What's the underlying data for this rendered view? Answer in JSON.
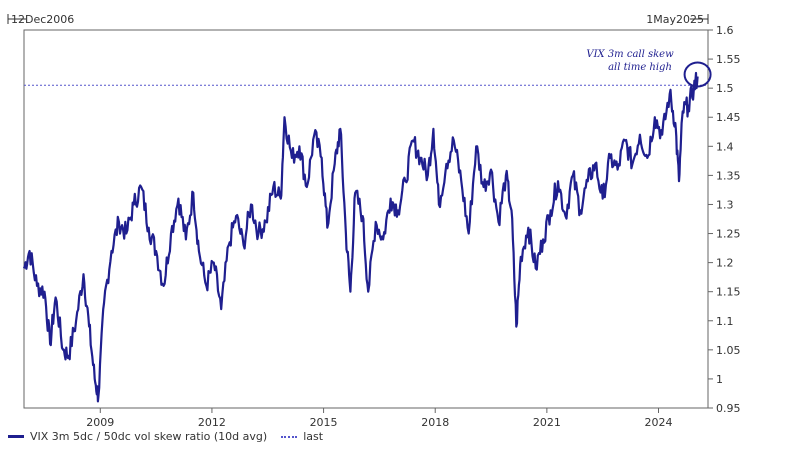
{
  "chart_data": {
    "type": "line",
    "range_start_label": "12Dec2006",
    "range_end_label": "1May2025",
    "x_start": 2006.95,
    "x_end": 2025.33,
    "ylim": [
      0.95,
      1.6
    ],
    "y_ticks": [
      "0.95",
      "1",
      "1.05",
      "1.1",
      "1.15",
      "1.2",
      "1.25",
      "1.3",
      "1.35",
      "1.4",
      "1.45",
      "1.5",
      "1.55",
      "1.6"
    ],
    "x_ticks": [
      {
        "value": 2009,
        "label": "2009"
      },
      {
        "value": 2012,
        "label": "2012"
      },
      {
        "value": 2015,
        "label": "2015"
      },
      {
        "value": 2018,
        "label": "2018"
      },
      {
        "value": 2021,
        "label": "2021"
      },
      {
        "value": 2024,
        "label": "2024"
      }
    ],
    "series": [
      {
        "name": "VIX 3m 5dc / 50dc vol skew ratio (10d avg)",
        "color": "#1f1f8f",
        "points": [
          [
            2006.95,
            1.19
          ],
          [
            2007.1,
            1.22
          ],
          [
            2007.3,
            1.16
          ],
          [
            2007.5,
            1.15
          ],
          [
            2007.65,
            1.06
          ],
          [
            2007.8,
            1.14
          ],
          [
            2008.0,
            1.05
          ],
          [
            2008.15,
            1.04
          ],
          [
            2008.35,
            1.1
          ],
          [
            2008.55,
            1.18
          ],
          [
            2008.7,
            1.09
          ],
          [
            2008.85,
            1.0
          ],
          [
            2008.95,
            0.97
          ],
          [
            2009.1,
            1.13
          ],
          [
            2009.3,
            1.22
          ],
          [
            2009.5,
            1.27
          ],
          [
            2009.7,
            1.25
          ],
          [
            2009.9,
            1.3
          ],
          [
            2010.1,
            1.33
          ],
          [
            2010.3,
            1.26
          ],
          [
            2010.5,
            1.22
          ],
          [
            2010.7,
            1.16
          ],
          [
            2010.9,
            1.25
          ],
          [
            2011.1,
            1.31
          ],
          [
            2011.3,
            1.24
          ],
          [
            2011.5,
            1.32
          ],
          [
            2011.65,
            1.22
          ],
          [
            2011.85,
            1.16
          ],
          [
            2012.05,
            1.2
          ],
          [
            2012.25,
            1.12
          ],
          [
            2012.45,
            1.23
          ],
          [
            2012.65,
            1.28
          ],
          [
            2012.85,
            1.23
          ],
          [
            2013.05,
            1.3
          ],
          [
            2013.25,
            1.25
          ],
          [
            2013.45,
            1.27
          ],
          [
            2013.65,
            1.33
          ],
          [
            2013.85,
            1.31
          ],
          [
            2013.95,
            1.45
          ],
          [
            2014.15,
            1.38
          ],
          [
            2014.35,
            1.4
          ],
          [
            2014.55,
            1.33
          ],
          [
            2014.75,
            1.42
          ],
          [
            2014.95,
            1.38
          ],
          [
            2015.1,
            1.26
          ],
          [
            2015.3,
            1.37
          ],
          [
            2015.45,
            1.43
          ],
          [
            2015.6,
            1.25
          ],
          [
            2015.72,
            1.15
          ],
          [
            2015.85,
            1.32
          ],
          [
            2016.05,
            1.28
          ],
          [
            2016.2,
            1.15
          ],
          [
            2016.4,
            1.27
          ],
          [
            2016.6,
            1.24
          ],
          [
            2016.8,
            1.31
          ],
          [
            2017.0,
            1.29
          ],
          [
            2017.2,
            1.34
          ],
          [
            2017.4,
            1.41
          ],
          [
            2017.6,
            1.38
          ],
          [
            2017.8,
            1.35
          ],
          [
            2017.95,
            1.43
          ],
          [
            2018.1,
            1.3
          ],
          [
            2018.3,
            1.37
          ],
          [
            2018.5,
            1.41
          ],
          [
            2018.7,
            1.34
          ],
          [
            2018.9,
            1.25
          ],
          [
            2019.1,
            1.4
          ],
          [
            2019.3,
            1.33
          ],
          [
            2019.5,
            1.36
          ],
          [
            2019.7,
            1.27
          ],
          [
            2019.9,
            1.35
          ],
          [
            2020.05,
            1.29
          ],
          [
            2020.18,
            1.09
          ],
          [
            2020.3,
            1.21
          ],
          [
            2020.5,
            1.26
          ],
          [
            2020.7,
            1.19
          ],
          [
            2020.9,
            1.24
          ],
          [
            2021.1,
            1.29
          ],
          [
            2021.3,
            1.34
          ],
          [
            2021.5,
            1.28
          ],
          [
            2021.7,
            1.35
          ],
          [
            2021.9,
            1.29
          ],
          [
            2022.1,
            1.34
          ],
          [
            2022.3,
            1.37
          ],
          [
            2022.5,
            1.31
          ],
          [
            2022.7,
            1.38
          ],
          [
            2022.9,
            1.36
          ],
          [
            2023.1,
            1.41
          ],
          [
            2023.3,
            1.37
          ],
          [
            2023.5,
            1.42
          ],
          [
            2023.7,
            1.38
          ],
          [
            2023.9,
            1.45
          ],
          [
            2024.1,
            1.42
          ],
          [
            2024.3,
            1.49
          ],
          [
            2024.45,
            1.44
          ],
          [
            2024.55,
            1.34
          ],
          [
            2024.65,
            1.46
          ],
          [
            2024.8,
            1.47
          ],
          [
            2024.95,
            1.5
          ],
          [
            2025.05,
            1.52
          ]
        ]
      },
      {
        "name": "last",
        "color": "#5555cc",
        "y": 1.505
      }
    ],
    "annotation": {
      "lines": [
        "VIX 3m call skew",
        "all time high"
      ],
      "target": [
        2025.05,
        1.52
      ]
    },
    "legend_position": "bottom-left"
  }
}
